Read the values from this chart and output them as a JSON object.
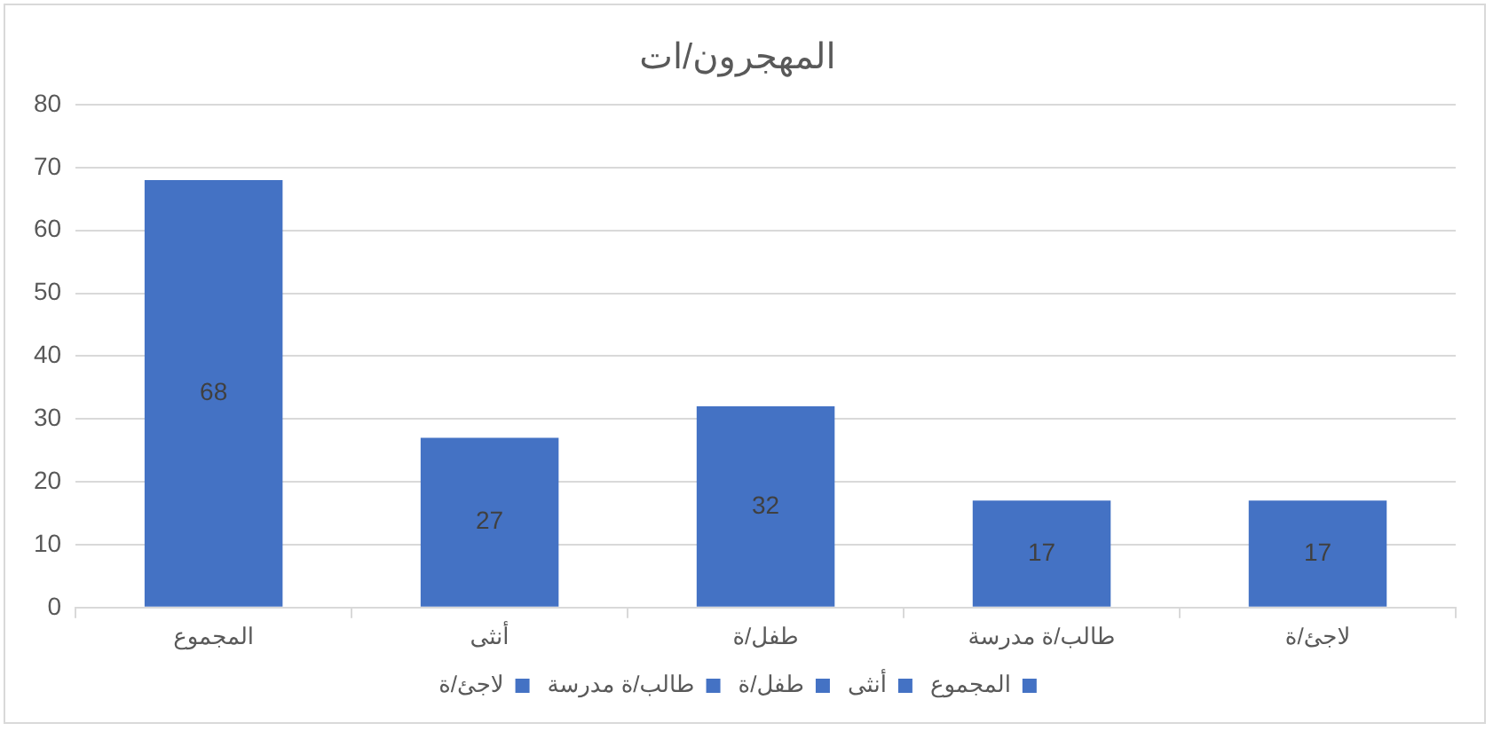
{
  "chart_data": {
    "type": "bar",
    "title": "المهجرون/ات",
    "categories": [
      "المجموع",
      "أنثى",
      "طفل/ة",
      "طالب/ة مدرسة",
      "لاجئ/ة"
    ],
    "series": [
      {
        "name": "المجموع",
        "color": "#4472c4",
        "values": [
          68,
          null,
          null,
          null,
          null
        ]
      },
      {
        "name": "أنثى",
        "color": "#4472c4",
        "values": [
          null,
          27,
          null,
          null,
          null
        ]
      },
      {
        "name": "طفل/ة",
        "color": "#4472c4",
        "values": [
          null,
          null,
          32,
          null,
          null
        ]
      },
      {
        "name": "طالب/ة مدرسة",
        "color": "#4472c4",
        "values": [
          null,
          null,
          null,
          17,
          null
        ]
      },
      {
        "name": "لاجئ/ة",
        "color": "#4472c4",
        "values": [
          null,
          null,
          null,
          null,
          17
        ]
      }
    ],
    "ylim": [
      0,
      80
    ],
    "yticks": [
      0,
      10,
      20,
      30,
      40,
      50,
      60,
      70,
      80
    ],
    "grid": "y",
    "legend": "bottom",
    "data_labels": true
  }
}
